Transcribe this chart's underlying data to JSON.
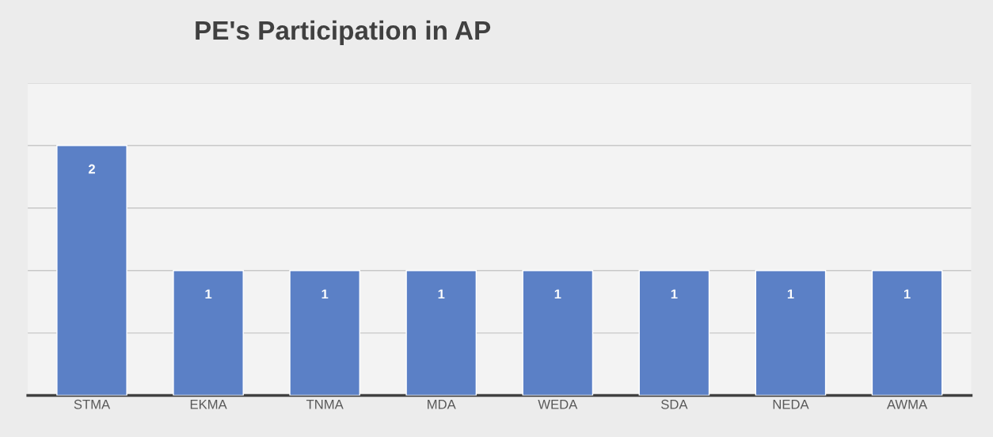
{
  "chart_data": {
    "type": "bar",
    "title": "PE's Participation in AP",
    "categories": [
      "STMA",
      "EKMA",
      "TNMA",
      "MDA",
      "WEDA",
      "SDA",
      "NEDA",
      "AWMA"
    ],
    "values": [
      2,
      1,
      1,
      1,
      1,
      1,
      1,
      1
    ],
    "color": "#5b80c6",
    "data_labels": true,
    "ylim": [
      0,
      2.5
    ],
    "yticks": [
      {
        "value": 0,
        "label": null
      },
      {
        "value": 0.5,
        "label": null
      },
      {
        "value": 1,
        "label": null
      },
      {
        "value": 1.5,
        "label": null
      },
      {
        "value": 2,
        "label": null
      },
      {
        "value": 2.5,
        "label": null
      }
    ],
    "grid": "y",
    "tick_labels": "x"
  }
}
